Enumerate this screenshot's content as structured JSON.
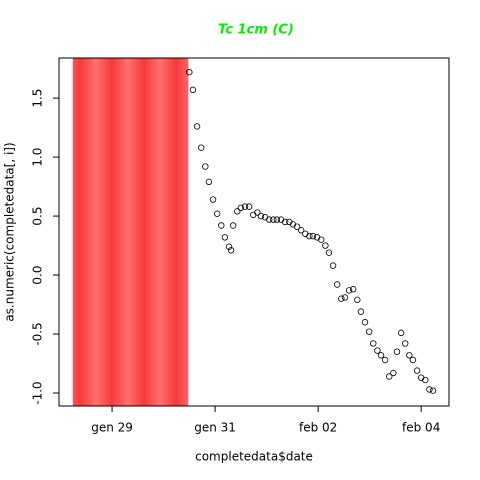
{
  "chart_data": {
    "type": "scatter",
    "title": "Tc 1cm (C)",
    "title_color": "#00ee00",
    "x_label": "completedata$date",
    "y_label": "as.numeric(completedata[, i])",
    "xlim": [
      27.97,
      35.54
    ],
    "ylim": [
      -1.11,
      1.84
    ],
    "xticks": [
      {
        "value": 29,
        "label": "gen 29"
      },
      {
        "value": 31,
        "label": "gen 31"
      },
      {
        "value": 33,
        "label": "feb 02"
      },
      {
        "value": 35,
        "label": "feb 04"
      }
    ],
    "yticks": [
      {
        "value": -1,
        "label": "-1.0"
      },
      -0.5,
      {
        "value": 0,
        "label": "0.0"
      },
      0.5,
      {
        "value": 1,
        "label": "1.0"
      },
      1.5
    ],
    "shaded_region": {
      "xlim": [
        28.24,
        30.48
      ],
      "color": "#ff4040"
    },
    "series": [
      {
        "color": "#000000",
        "x": [
          30.5,
          30.57,
          30.65,
          30.73,
          30.81,
          30.88,
          30.96,
          31.04,
          31.12,
          31.19,
          31.27,
          31.31,
          31.35,
          31.43,
          31.5,
          31.58,
          31.66,
          31.74,
          31.82,
          31.89,
          31.97,
          32.05,
          32.13,
          32.2,
          32.28,
          32.36,
          32.44,
          32.51,
          32.59,
          32.67,
          32.75,
          32.83,
          32.9,
          32.98,
          33.06,
          33.14,
          33.21,
          33.29,
          33.37,
          33.45,
          33.52,
          33.6,
          33.68,
          33.76,
          33.83,
          33.91,
          33.99,
          34.07,
          34.15,
          34.22,
          34.3,
          34.38,
          34.46,
          34.53,
          34.61,
          34.69,
          34.77,
          34.84,
          34.92,
          35.0,
          35.08,
          35.16,
          35.23
        ],
        "values": [
          1.72,
          1.57,
          1.26,
          1.08,
          0.92,
          0.79,
          0.64,
          0.52,
          0.42,
          0.32,
          0.24,
          0.21,
          0.42,
          0.54,
          0.57,
          0.58,
          0.58,
          0.51,
          0.53,
          0.5,
          0.49,
          0.47,
          0.47,
          0.47,
          0.47,
          0.45,
          0.45,
          0.43,
          0.41,
          0.38,
          0.35,
          0.33,
          0.33,
          0.32,
          0.3,
          0.25,
          0.19,
          0.08,
          -0.08,
          -0.2,
          -0.19,
          -0.13,
          -0.12,
          -0.21,
          -0.31,
          -0.4,
          -0.48,
          -0.58,
          -0.64,
          -0.68,
          -0.72,
          -0.86,
          -0.83,
          -0.65,
          -0.49,
          -0.58,
          -0.68,
          -0.72,
          -0.81,
          -0.87,
          -0.89,
          -0.97,
          -0.98
        ]
      }
    ]
  }
}
